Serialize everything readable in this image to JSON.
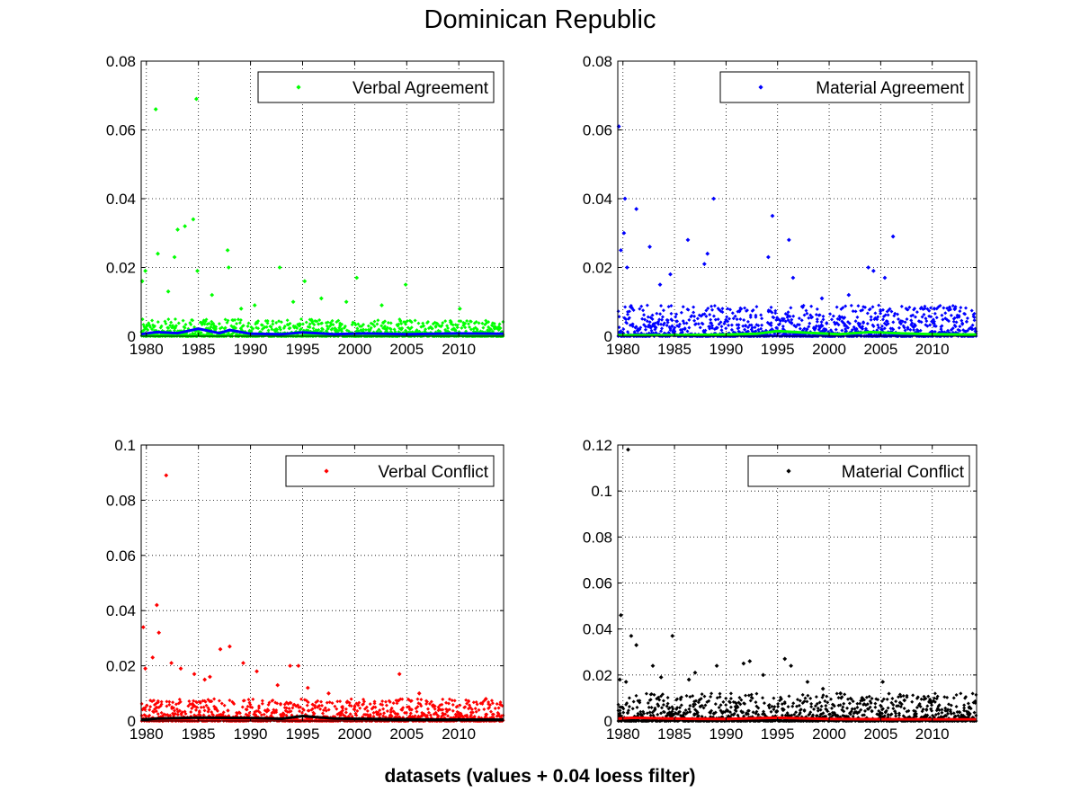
{
  "figure": {
    "title": "Dominican Republic",
    "footer": "datasets (values + 0.04 loess filter)"
  },
  "chart_data": [
    {
      "type": "scatter",
      "name": "verbal-agreement",
      "legend": "Verbal Agreement",
      "point_color": "#00ff00",
      "trend_color": "#0000ff",
      "xlim": [
        1979.5,
        2014.3
      ],
      "ylim": [
        0,
        0.08
      ],
      "xticks": [
        1980,
        1985,
        1990,
        1995,
        2000,
        2005,
        2010
      ],
      "yticks": [
        0,
        0.02,
        0.04,
        0.06,
        0.08
      ],
      "ytick_labels": [
        "0",
        "0.02",
        "0.04",
        "0.06",
        "0.08"
      ],
      "legend_position": "top-right",
      "grid": true,
      "baseline_max": 0.005,
      "highlights": [
        [
          1980.9,
          0.066
        ],
        [
          1984.8,
          0.069
        ],
        [
          1984.5,
          0.034
        ],
        [
          1983.7,
          0.032
        ],
        [
          1983.0,
          0.031
        ],
        [
          1981.1,
          0.024
        ],
        [
          1982.7,
          0.023
        ],
        [
          1987.8,
          0.025
        ],
        [
          1987.9,
          0.02
        ],
        [
          1984.9,
          0.019
        ],
        [
          1979.9,
          0.019
        ],
        [
          1979.6,
          0.016
        ],
        [
          1992.8,
          0.02
        ],
        [
          2000.2,
          0.017
        ],
        [
          2004.9,
          0.015
        ],
        [
          1995.2,
          0.016
        ],
        [
          1996.8,
          0.011
        ],
        [
          1999.2,
          0.01
        ],
        [
          2002.6,
          0.009
        ],
        [
          2010.1,
          0.008
        ],
        [
          1990.4,
          0.009
        ],
        [
          1982.1,
          0.013
        ],
        [
          1986.3,
          0.012
        ],
        [
          1994.1,
          0.01
        ],
        [
          1989.1,
          0.008
        ]
      ],
      "trend": [
        [
          1979.5,
          0.0006
        ],
        [
          1981.0,
          0.0012
        ],
        [
          1983.0,
          0.0009
        ],
        [
          1985.0,
          0.0022
        ],
        [
          1987.0,
          0.0009
        ],
        [
          1988.0,
          0.0018
        ],
        [
          1990.0,
          0.0007
        ],
        [
          1993.0,
          0.0006
        ],
        [
          1995.0,
          0.0011
        ],
        [
          1998.0,
          0.0006
        ],
        [
          2001.0,
          0.0008
        ],
        [
          2005.0,
          0.0006
        ],
        [
          2010.0,
          0.0008
        ],
        [
          2014.3,
          0.0007
        ]
      ]
    },
    {
      "type": "scatter",
      "name": "material-agreement",
      "legend": "Material Agreement",
      "point_color": "#0000ff",
      "trend_color": "#00ff00",
      "xlim": [
        1979.5,
        2014.3
      ],
      "ylim": [
        0,
        0.08
      ],
      "xticks": [
        1980,
        1985,
        1990,
        1995,
        2000,
        2005,
        2010
      ],
      "yticks": [
        0,
        0.02,
        0.04,
        0.06,
        0.08
      ],
      "ytick_labels": [
        "0",
        "0.02",
        "0.04",
        "0.06",
        "0.08"
      ],
      "legend_position": "top-right",
      "grid": true,
      "baseline_max": 0.009,
      "highlights": [
        [
          1979.6,
          0.061
        ],
        [
          1980.2,
          0.04
        ],
        [
          1988.8,
          0.04
        ],
        [
          1981.3,
          0.037
        ],
        [
          1994.5,
          0.035
        ],
        [
          1980.1,
          0.03
        ],
        [
          1979.8,
          0.025
        ],
        [
          2006.2,
          0.029
        ],
        [
          1996.1,
          0.028
        ],
        [
          1982.6,
          0.026
        ],
        [
          1986.3,
          0.028
        ],
        [
          1980.4,
          0.02
        ],
        [
          1988.2,
          0.024
        ],
        [
          1994.1,
          0.023
        ],
        [
          1987.9,
          0.021
        ],
        [
          2003.8,
          0.02
        ],
        [
          2004.3,
          0.019
        ],
        [
          2005.4,
          0.017
        ],
        [
          2001.9,
          0.012
        ],
        [
          1984.6,
          0.018
        ],
        [
          1999.3,
          0.011
        ],
        [
          2010.2,
          0.008
        ],
        [
          2012.2,
          0.008
        ],
        [
          1996.5,
          0.017
        ],
        [
          1983.6,
          0.015
        ]
      ],
      "trend": [
        [
          1979.5,
          0.0003
        ],
        [
          1984.0,
          0.0003
        ],
        [
          1990.0,
          0.0005
        ],
        [
          1993.0,
          0.0007
        ],
        [
          1995.0,
          0.0015
        ],
        [
          1998.0,
          0.001
        ],
        [
          2001.0,
          0.0006
        ],
        [
          2004.0,
          0.0012
        ],
        [
          2007.0,
          0.0008
        ],
        [
          2010.0,
          0.0006
        ],
        [
          2014.3,
          0.0005
        ]
      ]
    },
    {
      "type": "scatter",
      "name": "verbal-conflict",
      "legend": "Verbal Conflict",
      "point_color": "#ff0000",
      "trend_color": "#000000",
      "xlim": [
        1979.5,
        2014.3
      ],
      "ylim": [
        0,
        0.1
      ],
      "xticks": [
        1980,
        1985,
        1990,
        1995,
        2000,
        2005,
        2010
      ],
      "yticks": [
        0,
        0.02,
        0.04,
        0.06,
        0.08,
        0.1
      ],
      "ytick_labels": [
        "0",
        "0.02",
        "0.04",
        "0.06",
        "0.08",
        "0.1"
      ],
      "legend_position": "top-right",
      "grid": true,
      "baseline_max": 0.008,
      "highlights": [
        [
          1981.9,
          0.089
        ],
        [
          1981.0,
          0.042
        ],
        [
          1981.2,
          0.032
        ],
        [
          1979.7,
          0.034
        ],
        [
          1980.6,
          0.023
        ],
        [
          1982.4,
          0.021
        ],
        [
          1988.0,
          0.027
        ],
        [
          1987.1,
          0.026
        ],
        [
          1993.8,
          0.02
        ],
        [
          1994.6,
          0.02
        ],
        [
          2004.3,
          0.017
        ],
        [
          1990.6,
          0.018
        ],
        [
          1989.3,
          0.021
        ],
        [
          1986.1,
          0.016
        ],
        [
          1984.6,
          0.017
        ],
        [
          1995.5,
          0.012
        ],
        [
          1992.6,
          0.013
        ],
        [
          1997.5,
          0.01
        ],
        [
          2006.2,
          0.01
        ],
        [
          2012.6,
          0.008
        ],
        [
          2014.0,
          0.006
        ],
        [
          1999.3,
          0.007
        ],
        [
          1983.3,
          0.019
        ],
        [
          1979.9,
          0.019
        ],
        [
          1985.6,
          0.015
        ]
      ],
      "trend": [
        [
          1979.5,
          0.0005
        ],
        [
          1981.0,
          0.0009
        ],
        [
          1985.0,
          0.0012
        ],
        [
          1990.0,
          0.0011
        ],
        [
          1993.0,
          0.0008
        ],
        [
          1995.0,
          0.0018
        ],
        [
          1998.0,
          0.0009
        ],
        [
          2003.0,
          0.0007
        ],
        [
          2008.0,
          0.0005
        ],
        [
          2014.3,
          0.0005
        ]
      ]
    },
    {
      "type": "scatter",
      "name": "material-conflict",
      "legend": "Material Conflict",
      "point_color": "#000000",
      "trend_color": "#ff0000",
      "xlim": [
        1979.5,
        2014.3
      ],
      "ylim": [
        0,
        0.12
      ],
      "xticks": [
        1980,
        1985,
        1990,
        1995,
        2000,
        2005,
        2010
      ],
      "yticks": [
        0,
        0.02,
        0.04,
        0.06,
        0.08,
        0.1,
        0.12
      ],
      "ytick_labels": [
        "0",
        "0.02",
        "0.04",
        "0.06",
        "0.08",
        "0.1",
        "0.12"
      ],
      "legend_position": "top-right",
      "grid": true,
      "baseline_max": 0.012,
      "highlights": [
        [
          1980.5,
          0.118
        ],
        [
          1979.8,
          0.046
        ],
        [
          1980.8,
          0.037
        ],
        [
          1984.8,
          0.037
        ],
        [
          1981.3,
          0.033
        ],
        [
          1979.7,
          0.018
        ],
        [
          1980.3,
          0.017
        ],
        [
          1982.9,
          0.024
        ],
        [
          1987.0,
          0.021
        ],
        [
          1989.1,
          0.024
        ],
        [
          1991.7,
          0.025
        ],
        [
          1992.3,
          0.026
        ],
        [
          1995.7,
          0.027
        ],
        [
          1996.3,
          0.024
        ],
        [
          1997.9,
          0.017
        ],
        [
          2005.2,
          0.017
        ],
        [
          2001.1,
          0.012
        ],
        [
          1993.6,
          0.02
        ],
        [
          2009.9,
          0.008
        ],
        [
          2013.6,
          0.006
        ],
        [
          2003.2,
          0.01
        ],
        [
          1986.4,
          0.018
        ],
        [
          1983.7,
          0.019
        ],
        [
          1999.4,
          0.014
        ],
        [
          2007.3,
          0.009
        ]
      ],
      "trend": [
        [
          1979.5,
          0.001
        ],
        [
          1981.0,
          0.0014
        ],
        [
          1985.0,
          0.001
        ],
        [
          1990.0,
          0.0009
        ],
        [
          1995.0,
          0.0014
        ],
        [
          2000.0,
          0.0009
        ],
        [
          2005.0,
          0.0008
        ],
        [
          2010.0,
          0.0007
        ],
        [
          2014.3,
          0.0007
        ]
      ]
    }
  ]
}
